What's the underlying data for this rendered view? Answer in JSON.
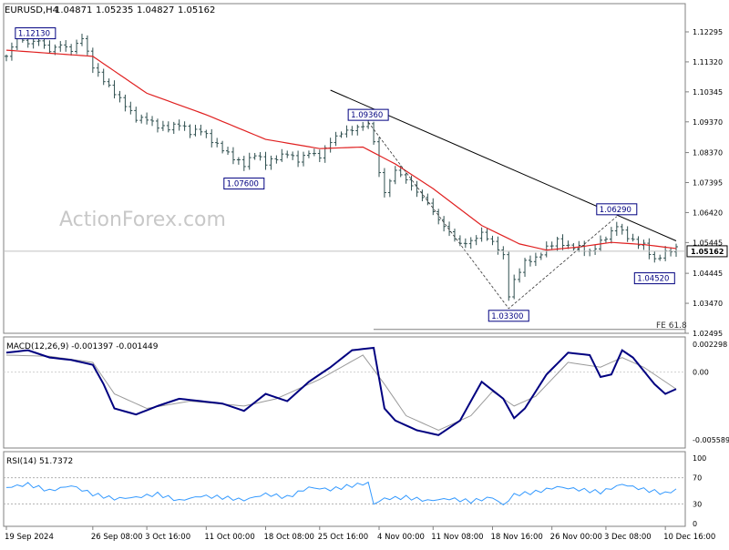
{
  "header": {
    "symbol": "EURUSD,H4",
    "open": "1.04871",
    "high": "1.05235",
    "low": "1.04827",
    "close": "1.05162"
  },
  "watermark": "ActionForex.com",
  "colors": {
    "candle": "#2f4f4f",
    "ma": "#e02020",
    "macd": "#000080",
    "signal": "#9a9a9a",
    "rsi": "#3399ff",
    "trend": "#000000",
    "current_box": "#ffffff"
  },
  "chart_data": [
    {
      "type": "candlestick",
      "price_ticks": [
        "1.12295",
        "1.11320",
        "1.10345",
        "1.09370",
        "1.08370",
        "1.07395",
        "1.06420",
        "1.05445",
        "1.04445",
        "1.03470",
        "1.02495"
      ],
      "current_price": "1.05162",
      "annotations": [
        {
          "label": "1.12130",
          "index": 2
        },
        {
          "label": "1.09360",
          "index": 67
        },
        {
          "label": "1.07600",
          "index": 44
        },
        {
          "label": "1.03300",
          "index": 93
        },
        {
          "label": "1.06290",
          "index": 113
        },
        {
          "label": "1.04520",
          "index": 120
        }
      ],
      "fe_label": "FE 61.8",
      "fe_price": 1.0262,
      "x_ticks": [
        {
          "label": "19 Sep 2024",
          "index": 0
        },
        {
          "label": "26 Sep 08:00",
          "index": 16
        },
        {
          "label": "3 Oct 16:00",
          "index": 26
        },
        {
          "label": "11 Oct 00:00",
          "index": 37
        },
        {
          "label": "18 Oct 08:00",
          "index": 48
        },
        {
          "label": "25 Oct 16:00",
          "index": 58
        },
        {
          "label": "4 Nov 00:00",
          "index": 69
        },
        {
          "label": "11 Nov 08:00",
          "index": 79
        },
        {
          "label": "18 Nov 16:00",
          "index": 90
        },
        {
          "label": "26 Nov 00:00",
          "index": 101
        },
        {
          "label": "3 Dec 08:00",
          "index": 111
        },
        {
          "label": "10 Dec 16:00",
          "index": 122
        }
      ],
      "close_anchors": [
        [
          0,
          1.115
        ],
        [
          2,
          1.12
        ],
        [
          4,
          1.118
        ],
        [
          6,
          1.1195
        ],
        [
          8,
          1.117
        ],
        [
          10,
          1.12
        ],
        [
          12,
          1.118
        ],
        [
          14,
          1.1215
        ],
        [
          16,
          1.111
        ],
        [
          18,
          1.106
        ],
        [
          20,
          1.102
        ],
        [
          22,
          1.099
        ],
        [
          24,
          1.0955
        ],
        [
          26,
          1.096
        ],
        [
          28,
          1.093
        ],
        [
          30,
          1.0915
        ],
        [
          32,
          1.092
        ],
        [
          34,
          1.089
        ],
        [
          36,
          1.0905
        ],
        [
          38,
          1.088
        ],
        [
          40,
          1.086
        ],
        [
          42,
          1.083
        ],
        [
          44,
          1.08
        ],
        [
          46,
          1.0825
        ],
        [
          48,
          1.079
        ],
        [
          50,
          1.081
        ],
        [
          52,
          1.0835
        ],
        [
          54,
          1.082
        ],
        [
          56,
          1.085
        ],
        [
          58,
          1.083
        ],
        [
          60,
          1.087
        ],
        [
          62,
          1.089
        ],
        [
          64,
          1.09
        ],
        [
          66,
          1.092
        ],
        [
          67,
          1.093
        ],
        [
          68,
          1.088
        ],
        [
          69,
          1.078
        ],
        [
          70,
          1.072
        ],
        [
          72,
          1.079
        ],
        [
          74,
          1.075
        ],
        [
          76,
          1.07
        ],
        [
          78,
          1.066
        ],
        [
          80,
          1.061
        ],
        [
          82,
          1.058
        ],
        [
          84,
          1.055
        ],
        [
          86,
          1.056
        ],
        [
          88,
          1.058
        ],
        [
          90,
          1.054
        ],
        [
          92,
          1.049
        ],
        [
          93,
          1.036
        ],
        [
          94,
          1.041
        ],
        [
          96,
          1.048
        ],
        [
          98,
          1.05
        ],
        [
          100,
          1.054
        ],
        [
          102,
          1.056
        ],
        [
          104,
          1.053
        ],
        [
          106,
          1.052
        ],
        [
          108,
          1.05
        ],
        [
          110,
          1.054
        ],
        [
          112,
          1.058
        ],
        [
          113,
          1.061
        ],
        [
          114,
          1.059
        ],
        [
          116,
          1.056
        ],
        [
          118,
          1.054
        ],
        [
          120,
          1.048
        ],
        [
          121,
          1.049
        ],
        [
          122,
          1.05
        ],
        [
          124,
          1.0516
        ]
      ],
      "ma_anchors": [
        [
          0,
          1.117
        ],
        [
          16,
          1.115
        ],
        [
          26,
          1.103
        ],
        [
          37,
          1.096
        ],
        [
          48,
          1.088
        ],
        [
          58,
          1.085
        ],
        [
          66,
          1.0855
        ],
        [
          72,
          1.08
        ],
        [
          79,
          1.072
        ],
        [
          88,
          1.06
        ],
        [
          95,
          1.054
        ],
        [
          100,
          1.052
        ],
        [
          106,
          1.053
        ],
        [
          112,
          1.0545
        ],
        [
          118,
          1.0538
        ],
        [
          124,
          1.0525
        ]
      ]
    },
    {
      "type": "line",
      "title": "MACD(12,26,9) -0.001397 -0.001449",
      "y_ticks": [
        "0.002298",
        "0.00",
        "-0.005589"
      ],
      "ylim": [
        -0.005589,
        0.002298
      ],
      "macd_anchors": [
        [
          0,
          0.0016
        ],
        [
          4,
          0.0018
        ],
        [
          8,
          0.0012
        ],
        [
          12,
          0.001
        ],
        [
          16,
          0.0006
        ],
        [
          18,
          -0.001
        ],
        [
          20,
          -0.003
        ],
        [
          24,
          -0.0035
        ],
        [
          28,
          -0.0028
        ],
        [
          32,
          -0.0022
        ],
        [
          36,
          -0.0024
        ],
        [
          40,
          -0.0026
        ],
        [
          44,
          -0.0032
        ],
        [
          48,
          -0.0018
        ],
        [
          52,
          -0.0024
        ],
        [
          56,
          -0.0008
        ],
        [
          60,
          0.0004
        ],
        [
          64,
          0.0018
        ],
        [
          68,
          0.002
        ],
        [
          70,
          -0.003
        ],
        [
          72,
          -0.004
        ],
        [
          76,
          -0.0048
        ],
        [
          80,
          -0.0052
        ],
        [
          84,
          -0.004
        ],
        [
          88,
          -0.0008
        ],
        [
          92,
          -0.0022
        ],
        [
          94,
          -0.0038
        ],
        [
          96,
          -0.003
        ],
        [
          100,
          -0.0002
        ],
        [
          104,
          0.0016
        ],
        [
          108,
          0.0014
        ],
        [
          110,
          -0.0004
        ],
        [
          112,
          -0.0002
        ],
        [
          114,
          0.0018
        ],
        [
          116,
          0.0012
        ],
        [
          120,
          -0.001
        ],
        [
          122,
          -0.0018
        ],
        [
          124,
          -0.0014
        ]
      ],
      "signal_anchors": [
        [
          0,
          0.0014
        ],
        [
          8,
          0.0013
        ],
        [
          16,
          0.0008
        ],
        [
          20,
          -0.0018
        ],
        [
          26,
          -0.003
        ],
        [
          34,
          -0.0024
        ],
        [
          44,
          -0.0028
        ],
        [
          50,
          -0.0022
        ],
        [
          58,
          -0.0006
        ],
        [
          66,
          0.0014
        ],
        [
          70,
          -0.001
        ],
        [
          74,
          -0.0036
        ],
        [
          80,
          -0.0048
        ],
        [
          86,
          -0.0036
        ],
        [
          90,
          -0.0016
        ],
        [
          94,
          -0.0028
        ],
        [
          98,
          -0.002
        ],
        [
          104,
          0.0008
        ],
        [
          110,
          0.0004
        ],
        [
          114,
          0.0012
        ],
        [
          118,
          0.0004
        ],
        [
          124,
          -0.0014
        ]
      ]
    },
    {
      "type": "line",
      "title": "RSI(14) 51.7372",
      "y_ticks": [
        "100",
        "70",
        "30",
        "0"
      ],
      "ylim": [
        0,
        100
      ],
      "levels": [
        70,
        30
      ],
      "rsi_anchors": [
        [
          0,
          55
        ],
        [
          4,
          60
        ],
        [
          8,
          50
        ],
        [
          12,
          58
        ],
        [
          16,
          45
        ],
        [
          20,
          38
        ],
        [
          24,
          40
        ],
        [
          28,
          45
        ],
        [
          32,
          35
        ],
        [
          36,
          42
        ],
        [
          40,
          40
        ],
        [
          44,
          36
        ],
        [
          48,
          45
        ],
        [
          52,
          40
        ],
        [
          56,
          55
        ],
        [
          60,
          52
        ],
        [
          64,
          58
        ],
        [
          67,
          62
        ],
        [
          68,
          30
        ],
        [
          70,
          38
        ],
        [
          74,
          40
        ],
        [
          78,
          35
        ],
        [
          82,
          38
        ],
        [
          86,
          34
        ],
        [
          90,
          40
        ],
        [
          92,
          28
        ],
        [
          94,
          44
        ],
        [
          98,
          48
        ],
        [
          102,
          56
        ],
        [
          106,
          52
        ],
        [
          110,
          48
        ],
        [
          114,
          60
        ],
        [
          118,
          52
        ],
        [
          122,
          46
        ],
        [
          124,
          51.7
        ]
      ]
    }
  ]
}
